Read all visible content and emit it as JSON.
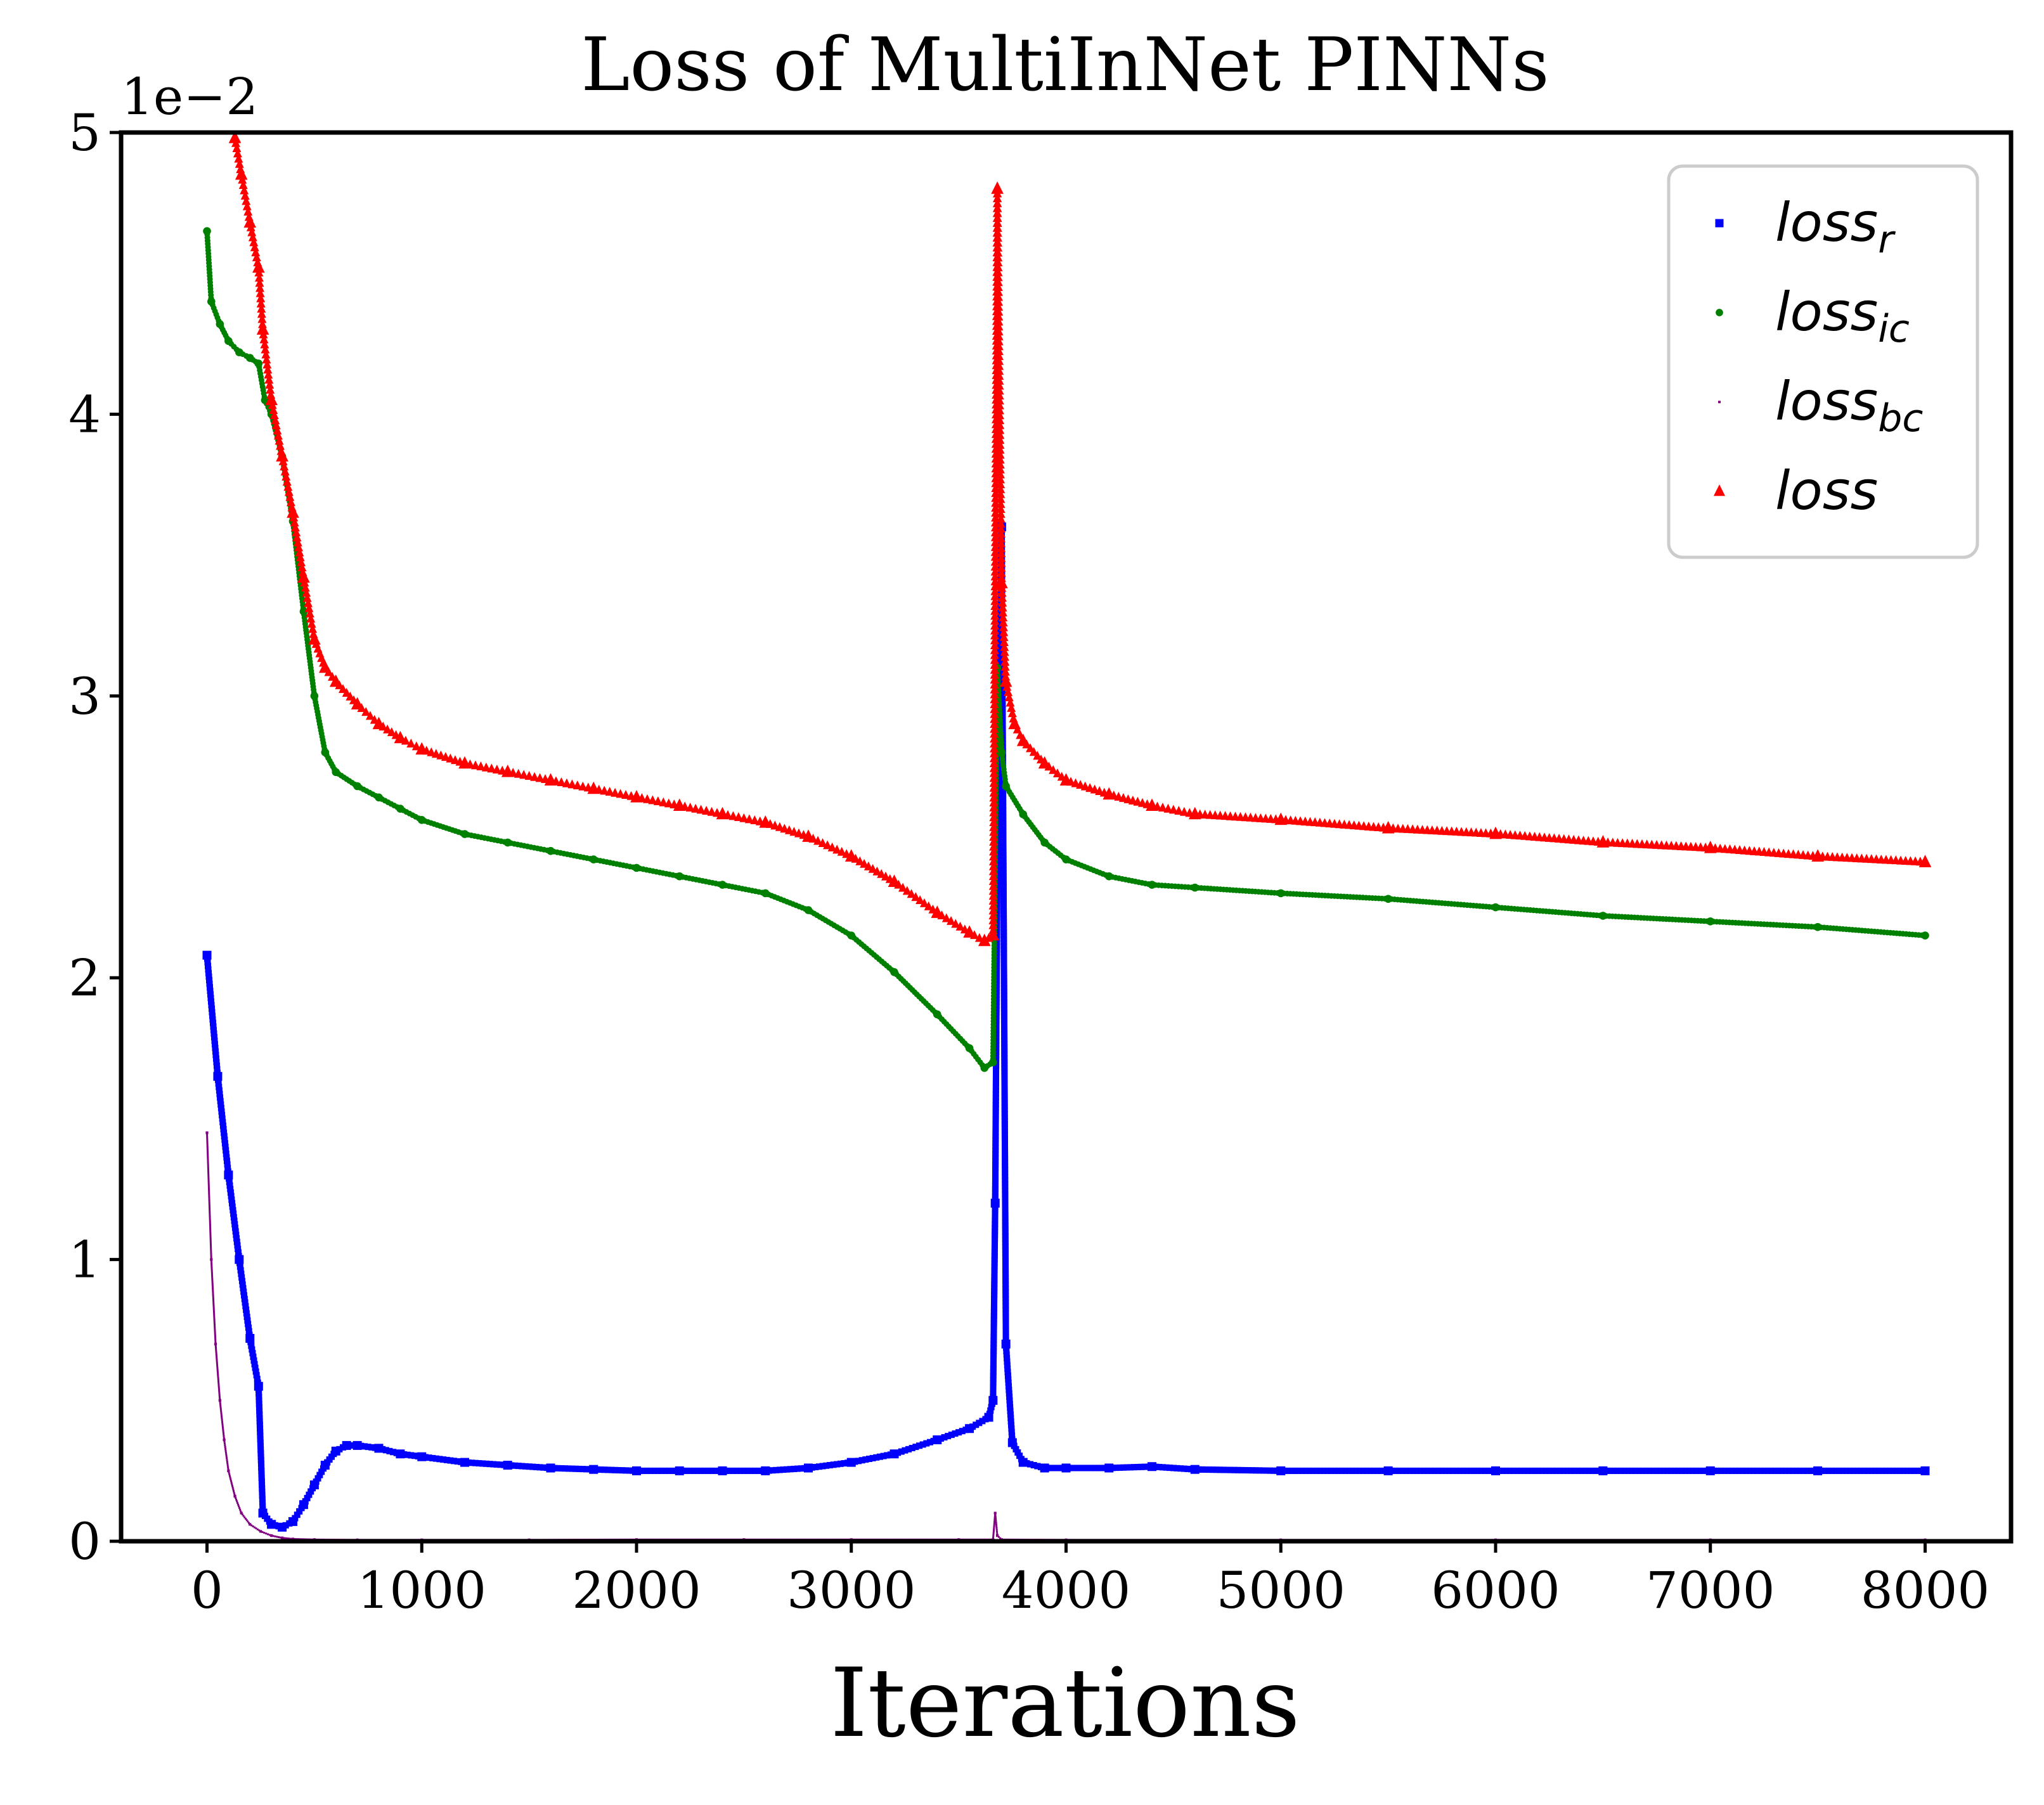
{
  "chart_data": {
    "type": "scatter",
    "title": "Loss of MultiInNet PINNs",
    "xlabel": "Iterations",
    "ylabel": "",
    "scale_label": "1e−2",
    "xlim": [
      -400,
      8400
    ],
    "ylim": [
      0,
      5
    ],
    "xticks": [
      0,
      1000,
      2000,
      3000,
      4000,
      5000,
      6000,
      7000,
      8000
    ],
    "xtick_labels": [
      "0",
      "1000",
      "2000",
      "3000",
      "4000",
      "5000",
      "6000",
      "7000",
      "8000"
    ],
    "yticks": [
      0,
      1,
      2,
      3,
      4,
      5
    ],
    "ytick_labels": [
      "0",
      "1",
      "2",
      "3",
      "4",
      "5"
    ],
    "grid": false,
    "legend_position": "top-right",
    "series": [
      {
        "id": "loss_r",
        "legend_base": "loss",
        "legend_sub": "r",
        "color": "#0000ff",
        "marker": "square",
        "x": [
          0,
          50,
          100,
          150,
          200,
          240,
          260,
          300,
          350,
          400,
          450,
          500,
          550,
          600,
          650,
          700,
          800,
          900,
          1000,
          1200,
          1400,
          1600,
          1800,
          2000,
          2200,
          2400,
          2600,
          2800,
          3000,
          3200,
          3400,
          3550,
          3640,
          3660,
          3670,
          3680,
          3700,
          3720,
          3750,
          3800,
          3900,
          4000,
          4200,
          4400,
          4600,
          5000,
          5500,
          6000,
          6500,
          7000,
          7500,
          8000
        ],
        "y": [
          2.08,
          1.65,
          1.3,
          1.0,
          0.72,
          0.55,
          0.1,
          0.06,
          0.05,
          0.07,
          0.13,
          0.2,
          0.27,
          0.32,
          0.34,
          0.34,
          0.33,
          0.31,
          0.3,
          0.28,
          0.27,
          0.26,
          0.255,
          0.25,
          0.25,
          0.25,
          0.25,
          0.26,
          0.28,
          0.31,
          0.36,
          0.4,
          0.44,
          0.5,
          1.2,
          2.4,
          3.6,
          0.7,
          0.35,
          0.28,
          0.26,
          0.26,
          0.26,
          0.265,
          0.255,
          0.25,
          0.25,
          0.25,
          0.25,
          0.25,
          0.25,
          0.25
        ]
      },
      {
        "id": "loss_ic",
        "legend_base": "loss",
        "legend_sub": "ic",
        "color": "#008000",
        "marker": "circle",
        "x": [
          0,
          20,
          60,
          100,
          150,
          200,
          240,
          270,
          300,
          350,
          400,
          450,
          500,
          550,
          600,
          700,
          800,
          900,
          1000,
          1200,
          1400,
          1600,
          1800,
          2000,
          2200,
          2400,
          2600,
          2800,
          3000,
          3200,
          3400,
          3550,
          3620,
          3660,
          3680,
          3700,
          3720,
          3800,
          3900,
          4000,
          4200,
          4400,
          4600,
          5000,
          5500,
          6000,
          6500,
          7000,
          7500,
          8000
        ],
        "y": [
          4.65,
          4.4,
          4.32,
          4.26,
          4.22,
          4.2,
          4.18,
          4.05,
          4.0,
          3.85,
          3.62,
          3.3,
          3.0,
          2.8,
          2.73,
          2.68,
          2.64,
          2.6,
          2.56,
          2.51,
          2.48,
          2.45,
          2.42,
          2.39,
          2.36,
          2.33,
          2.3,
          2.24,
          2.15,
          2.02,
          1.87,
          1.75,
          1.68,
          1.7,
          3.1,
          2.8,
          2.68,
          2.58,
          2.48,
          2.42,
          2.36,
          2.33,
          2.32,
          2.3,
          2.28,
          2.25,
          2.22,
          2.2,
          2.18,
          2.15
        ]
      },
      {
        "id": "loss_bc",
        "legend_base": "loss",
        "legend_sub": "bc",
        "color": "#800080",
        "marker": "pixel",
        "x": [
          0,
          20,
          40,
          60,
          80,
          100,
          130,
          160,
          200,
          250,
          300,
          350,
          400,
          500,
          700,
          1000,
          1500,
          2000,
          2500,
          3000,
          3500,
          3660,
          3670,
          3680,
          3700,
          4000,
          5000,
          6000,
          7000,
          8000
        ],
        "y": [
          1.45,
          1.0,
          0.7,
          0.5,
          0.36,
          0.25,
          0.16,
          0.1,
          0.06,
          0.035,
          0.02,
          0.012,
          0.008,
          0.006,
          0.005,
          0.005,
          0.005,
          0.006,
          0.006,
          0.006,
          0.006,
          0.006,
          0.1,
          0.02,
          0.006,
          0.005,
          0.005,
          0.005,
          0.005,
          0.005
        ]
      },
      {
        "id": "loss",
        "legend_base": "loss",
        "legend_sub": "",
        "color": "#ff0000",
        "marker": "triangle",
        "x": [
          130,
          160,
          200,
          240,
          260,
          300,
          350,
          400,
          450,
          500,
          550,
          600,
          700,
          800,
          900,
          1000,
          1200,
          1400,
          1600,
          1800,
          2000,
          2200,
          2400,
          2600,
          2800,
          3000,
          3200,
          3400,
          3550,
          3620,
          3660,
          3680,
          3700,
          3720,
          3760,
          3800,
          3900,
          4000,
          4200,
          4400,
          4600,
          5000,
          5500,
          6000,
          6500,
          7000,
          7500,
          8000
        ],
        "y": [
          4.98,
          4.85,
          4.68,
          4.52,
          4.3,
          4.05,
          3.85,
          3.65,
          3.42,
          3.2,
          3.1,
          3.05,
          2.97,
          2.9,
          2.85,
          2.81,
          2.76,
          2.73,
          2.7,
          2.67,
          2.64,
          2.61,
          2.58,
          2.55,
          2.5,
          2.43,
          2.34,
          2.23,
          2.16,
          2.13,
          2.15,
          4.8,
          3.4,
          3.05,
          2.9,
          2.84,
          2.76,
          2.7,
          2.65,
          2.61,
          2.58,
          2.56,
          2.53,
          2.51,
          2.48,
          2.46,
          2.43,
          2.41
        ]
      }
    ]
  }
}
